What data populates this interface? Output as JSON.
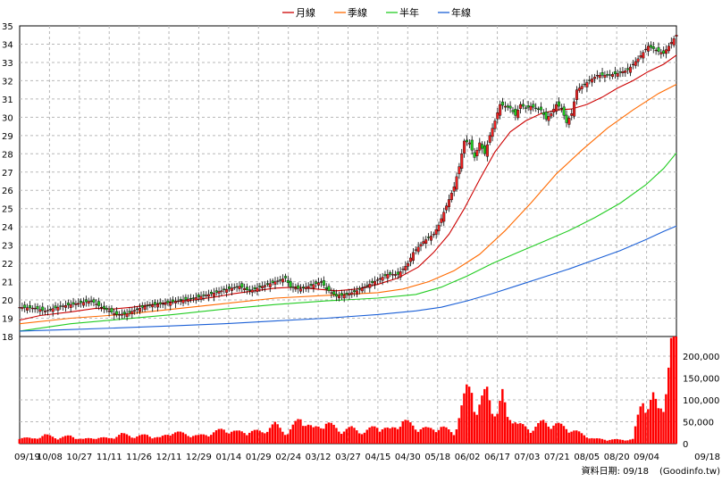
{
  "chart_data": {
    "type": "line",
    "price_panel": {
      "ylim": [
        18,
        35
      ],
      "y_ticks": [
        "18",
        "19",
        "20",
        "21",
        "22",
        "23",
        "24",
        "25",
        "26",
        "27",
        "28",
        "29",
        "30",
        "31",
        "32",
        "33",
        "34",
        "35"
      ]
    },
    "volume_panel": {
      "ylim": [
        0,
        245000
      ],
      "y_ticks": [
        "0",
        "50,000",
        "100,000",
        "150,000",
        "200,000"
      ]
    },
    "x_ticks": [
      "09/19",
      "10/08",
      "10/27",
      "11/11",
      "11/26",
      "12/11",
      "12/29",
      "01/14",
      "01/29",
      "02/24",
      "03/12",
      "03/27",
      "04/15",
      "04/30",
      "05/18",
      "06/02",
      "06/17",
      "07/03",
      "07/21",
      "08/05",
      "08/20",
      "09/04",
      "09/18"
    ],
    "grid": true,
    "legend_position": "top-center",
    "series": [
      {
        "name": "月線",
        "color": "#cc0000",
        "values": [
          [
            0,
            18.9
          ],
          [
            8,
            19.15
          ],
          [
            20,
            19.35
          ],
          [
            30,
            19.55
          ],
          [
            36,
            19.5
          ],
          [
            44,
            19.6
          ],
          [
            52,
            19.75
          ],
          [
            60,
            19.9
          ],
          [
            68,
            20.0
          ],
          [
            76,
            20.15
          ],
          [
            84,
            20.35
          ],
          [
            92,
            20.5
          ],
          [
            100,
            20.65
          ],
          [
            108,
            20.7
          ],
          [
            116,
            20.6
          ],
          [
            124,
            20.5
          ],
          [
            132,
            20.6
          ],
          [
            140,
            20.85
          ],
          [
            148,
            21.2
          ],
          [
            156,
            21.8
          ],
          [
            162,
            22.6
          ],
          [
            168,
            23.6
          ],
          [
            174,
            25.0
          ],
          [
            180,
            26.6
          ],
          [
            186,
            28.1
          ],
          [
            192,
            29.2
          ],
          [
            198,
            29.8
          ],
          [
            204,
            30.2
          ],
          [
            210,
            30.4
          ],
          [
            216,
            30.45
          ],
          [
            222,
            30.7
          ],
          [
            228,
            31.1
          ],
          [
            234,
            31.6
          ],
          [
            240,
            32.0
          ],
          [
            246,
            32.5
          ],
          [
            252,
            32.9
          ],
          [
            257,
            33.4
          ]
        ]
      },
      {
        "name": "季線",
        "color": "#ff6a00",
        "values": [
          [
            0,
            18.7
          ],
          [
            20,
            19.0
          ],
          [
            40,
            19.2
          ],
          [
            60,
            19.5
          ],
          [
            80,
            19.8
          ],
          [
            100,
            20.1
          ],
          [
            120,
            20.25
          ],
          [
            140,
            20.4
          ],
          [
            150,
            20.6
          ],
          [
            160,
            21.0
          ],
          [
            170,
            21.6
          ],
          [
            180,
            22.5
          ],
          [
            190,
            23.8
          ],
          [
            200,
            25.3
          ],
          [
            210,
            26.9
          ],
          [
            220,
            28.2
          ],
          [
            230,
            29.4
          ],
          [
            240,
            30.4
          ],
          [
            250,
            31.3
          ],
          [
            257,
            31.8
          ]
        ]
      },
      {
        "name": "半年",
        "color": "#22cc22",
        "values": [
          [
            0,
            18.3
          ],
          [
            20,
            18.7
          ],
          [
            40,
            18.95
          ],
          [
            60,
            19.2
          ],
          [
            80,
            19.5
          ],
          [
            100,
            19.75
          ],
          [
            120,
            19.95
          ],
          [
            140,
            20.1
          ],
          [
            155,
            20.3
          ],
          [
            165,
            20.7
          ],
          [
            175,
            21.3
          ],
          [
            185,
            22.0
          ],
          [
            195,
            22.6
          ],
          [
            205,
            23.2
          ],
          [
            215,
            23.8
          ],
          [
            225,
            24.5
          ],
          [
            235,
            25.3
          ],
          [
            245,
            26.3
          ],
          [
            252,
            27.2
          ],
          [
            257,
            28.05
          ]
        ]
      },
      {
        "name": "年線",
        "color": "#1a5fd6",
        "values": [
          [
            0,
            18.3
          ],
          [
            20,
            18.38
          ],
          [
            40,
            18.48
          ],
          [
            60,
            18.58
          ],
          [
            80,
            18.7
          ],
          [
            100,
            18.85
          ],
          [
            120,
            19.0
          ],
          [
            140,
            19.2
          ],
          [
            155,
            19.4
          ],
          [
            165,
            19.6
          ],
          [
            175,
            19.95
          ],
          [
            185,
            20.35
          ],
          [
            195,
            20.8
          ],
          [
            205,
            21.25
          ],
          [
            215,
            21.7
          ],
          [
            225,
            22.2
          ],
          [
            235,
            22.7
          ],
          [
            245,
            23.3
          ],
          [
            252,
            23.75
          ],
          [
            257,
            24.05
          ]
        ]
      }
    ],
    "close_price": {
      "values": [
        [
          0,
          19.6
        ],
        [
          6,
          19.55
        ],
        [
          10,
          19.4
        ],
        [
          16,
          19.65
        ],
        [
          22,
          19.8
        ],
        [
          28,
          19.95
        ],
        [
          32,
          19.6
        ],
        [
          38,
          19.2
        ],
        [
          42,
          19.25
        ],
        [
          46,
          19.5
        ],
        [
          50,
          19.7
        ],
        [
          56,
          19.8
        ],
        [
          62,
          19.95
        ],
        [
          68,
          20.1
        ],
        [
          74,
          20.3
        ],
        [
          80,
          20.55
        ],
        [
          86,
          20.75
        ],
        [
          90,
          20.5
        ],
        [
          96,
          20.8
        ],
        [
          100,
          21.0
        ],
        [
          104,
          21.2
        ],
        [
          106,
          20.7
        ],
        [
          110,
          20.6
        ],
        [
          114,
          20.8
        ],
        [
          118,
          21.0
        ],
        [
          120,
          20.6
        ],
        [
          124,
          20.2
        ],
        [
          128,
          20.3
        ],
        [
          132,
          20.5
        ],
        [
          136,
          20.8
        ],
        [
          140,
          21.1
        ],
        [
          144,
          21.4
        ],
        [
          148,
          21.4
        ],
        [
          152,
          22.0
        ],
        [
          154,
          22.6
        ],
        [
          158,
          23.2
        ],
        [
          162,
          23.6
        ],
        [
          164,
          24.1
        ],
        [
          166,
          24.8
        ],
        [
          168,
          25.5
        ],
        [
          170,
          26.2
        ],
        [
          172,
          27.3
        ],
        [
          174,
          28.7
        ],
        [
          176,
          28.6
        ],
        [
          178,
          27.8
        ],
        [
          180,
          28.6
        ],
        [
          182,
          28.0
        ],
        [
          184,
          29.0
        ],
        [
          186,
          29.8
        ],
        [
          188,
          30.7
        ],
        [
          190,
          30.6
        ],
        [
          192,
          30.5
        ],
        [
          194,
          30.1
        ],
        [
          196,
          30.7
        ],
        [
          198,
          30.5
        ],
        [
          200,
          30.6
        ],
        [
          204,
          30.4
        ],
        [
          206,
          29.9
        ],
        [
          208,
          30.2
        ],
        [
          210,
          30.7
        ],
        [
          212,
          30.5
        ],
        [
          214,
          29.7
        ],
        [
          216,
          30.2
        ],
        [
          218,
          31.5
        ],
        [
          222,
          31.9
        ],
        [
          226,
          32.3
        ],
        [
          230,
          32.3
        ],
        [
          234,
          32.4
        ],
        [
          238,
          32.6
        ],
        [
          242,
          33.2
        ],
        [
          246,
          33.9
        ],
        [
          250,
          33.6
        ],
        [
          252,
          33.5
        ],
        [
          254,
          33.9
        ],
        [
          257,
          34.5
        ]
      ]
    },
    "volume": {
      "color": "#ff0000",
      "values": [
        [
          0,
          14000
        ],
        [
          5,
          10000
        ],
        [
          10,
          18000
        ],
        [
          15,
          12000
        ],
        [
          20,
          16000
        ],
        [
          25,
          9000
        ],
        [
          30,
          13000
        ],
        [
          35,
          11000
        ],
        [
          40,
          20000
        ],
        [
          45,
          15000
        ],
        [
          50,
          18000
        ],
        [
          55,
          12000
        ],
        [
          60,
          25000
        ],
        [
          65,
          20000
        ],
        [
          70,
          16000
        ],
        [
          75,
          22000
        ],
        [
          80,
          30000
        ],
        [
          85,
          24000
        ],
        [
          90,
          26000
        ],
        [
          95,
          25000
        ],
        [
          100,
          40000
        ],
        [
          105,
          22000
        ],
        [
          110,
          55000
        ],
        [
          115,
          30000
        ],
        [
          120,
          45000
        ],
        [
          125,
          28000
        ],
        [
          130,
          32000
        ],
        [
          135,
          24000
        ],
        [
          140,
          38000
        ],
        [
          145,
          28000
        ],
        [
          150,
          48000
        ],
        [
          155,
          35000
        ],
        [
          160,
          30000
        ],
        [
          165,
          35000
        ],
        [
          170,
          22000
        ],
        [
          175,
          110000
        ],
        [
          177,
          120000
        ],
        [
          179,
          70000
        ],
        [
          181,
          90000
        ],
        [
          183,
          110000
        ],
        [
          185,
          80000
        ],
        [
          187,
          65000
        ],
        [
          189,
          100000
        ],
        [
          191,
          55000
        ],
        [
          193,
          60000
        ],
        [
          195,
          40000
        ],
        [
          200,
          30000
        ],
        [
          205,
          45000
        ],
        [
          210,
          40000
        ],
        [
          215,
          32000
        ],
        [
          220,
          20000
        ],
        [
          225,
          10000
        ],
        [
          230,
          9000
        ],
        [
          235,
          8000
        ],
        [
          240,
          9000
        ],
        [
          244,
          100000
        ],
        [
          246,
          80000
        ],
        [
          248,
          95000
        ],
        [
          250,
          70000
        ],
        [
          252,
          90000
        ],
        [
          254,
          160000
        ],
        [
          256,
          240000
        ]
      ]
    }
  },
  "footer": {
    "date_label": "資料日期: 09/18",
    "source": "(Goodinfo.tw)"
  }
}
